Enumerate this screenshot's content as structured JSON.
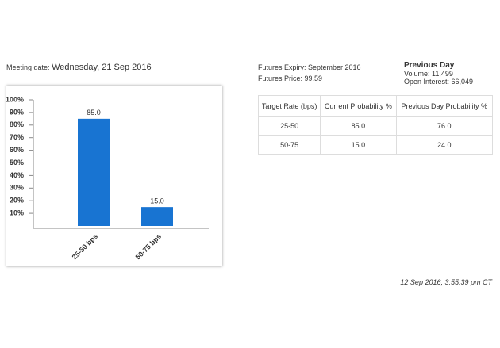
{
  "meeting": {
    "label": "Meeting date:",
    "date": "Wednesday, 21 Sep 2016"
  },
  "futures": {
    "expiry": "Futures Expiry: September 2016",
    "price": "Futures Price: 99.59"
  },
  "previous_day": {
    "title": "Previous Day",
    "volume": "Volume: 11,499",
    "open_interest": "Open Interest: 66,049"
  },
  "table": {
    "header": [
      "Target Rate (bps)",
      "Current Probability %",
      "Previous Day Probability %"
    ],
    "rows": [
      [
        "25-50",
        "85.0",
        "76.0"
      ],
      [
        "50-75",
        "15.0",
        "24.0"
      ]
    ]
  },
  "timestamp": "12 Sep 2016, 3:55:39 pm CT",
  "chart_data": {
    "type": "bar",
    "categories": [
      "25-50 bps",
      "50-75 bps"
    ],
    "values": [
      85,
      15
    ],
    "value_labels": [
      "85.0",
      "15.0"
    ],
    "color": "#1874d2",
    "ylim": [
      0,
      100
    ],
    "yticks": [
      {
        "value": 10,
        "label": "10%"
      },
      {
        "value": 20,
        "label": "20%"
      },
      {
        "value": 30,
        "label": "30%"
      },
      {
        "value": 40,
        "label": "40%"
      },
      {
        "value": 50,
        "label": "50%"
      },
      {
        "value": 60,
        "label": "60%"
      },
      {
        "value": 70,
        "label": "70%"
      },
      {
        "value": 80,
        "label": "80%"
      },
      {
        "value": 90,
        "label": "90%"
      },
      {
        "value": 100,
        "label": "100%"
      }
    ]
  }
}
